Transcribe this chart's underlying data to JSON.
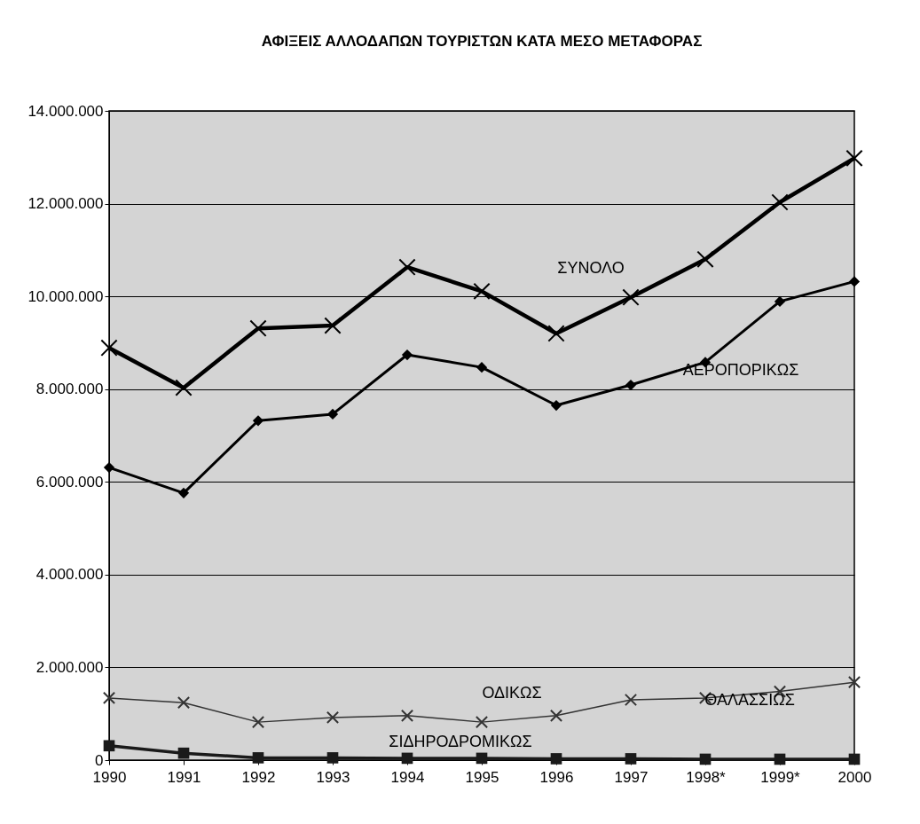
{
  "chart_data": {
    "type": "line",
    "title": "ΑΦΙΞΕΙΣ ΑΛΛΟΔΑΠΩΝ ΤΟΥΡΙΣΤΩΝ ΚΑΤΑ ΜΕΣΟ ΜΕΤΑΦΟΡΑΣ",
    "categories": [
      "1990",
      "1991",
      "1992",
      "1993",
      "1994",
      "1995",
      "1996",
      "1997",
      "1998*",
      "1999*",
      "2000"
    ],
    "series": [
      {
        "name": "ΣΥΝΟΛΟ",
        "color": "#000000",
        "marker": "cross",
        "values": [
          8890000,
          8030000,
          9310000,
          9370000,
          10630000,
          10110000,
          9200000,
          9980000,
          10800000,
          12030000,
          12980000
        ]
      },
      {
        "name": "ΑΕΡΟΠΟΡΙΚΩΣ",
        "color": "#000000",
        "marker": "diamond",
        "values": [
          6310000,
          5760000,
          7320000,
          7460000,
          8740000,
          8470000,
          7650000,
          8090000,
          8580000,
          9890000,
          10320000
        ]
      },
      {
        "name": "ΟΔΙΚΩΣ",
        "color": "#333333",
        "marker": "cross",
        "values": [
          1340000,
          1240000,
          820000,
          920000,
          960000,
          820000,
          960000,
          1300000,
          1340000,
          1480000,
          1680000
        ]
      },
      {
        "name": "ΣΙΔΗΡΟΔΡΟΜΙΚΩΣ",
        "color": "#1a1a1a",
        "marker": "square",
        "values": [
          310000,
          150000,
          50000,
          50000,
          40000,
          40000,
          30000,
          30000,
          20000,
          20000,
          20000
        ]
      }
    ],
    "annotations": [
      "ΘΑΛΑΣΣΙΩΣ"
    ],
    "ylim": [
      0,
      14000000
    ],
    "yticks": [
      {
        "value": 0,
        "label": "0"
      },
      {
        "value": 2000000,
        "label": "2.000.000"
      },
      {
        "value": 4000000,
        "label": "4.000.000"
      },
      {
        "value": 6000000,
        "label": "6.000.000"
      },
      {
        "value": 8000000,
        "label": "8.000.000"
      },
      {
        "value": 10000000,
        "label": "10.000.000"
      },
      {
        "value": 12000000,
        "label": "12.000.000"
      },
      {
        "value": 14000000,
        "label": "14.000.000"
      }
    ],
    "grid": "y"
  }
}
